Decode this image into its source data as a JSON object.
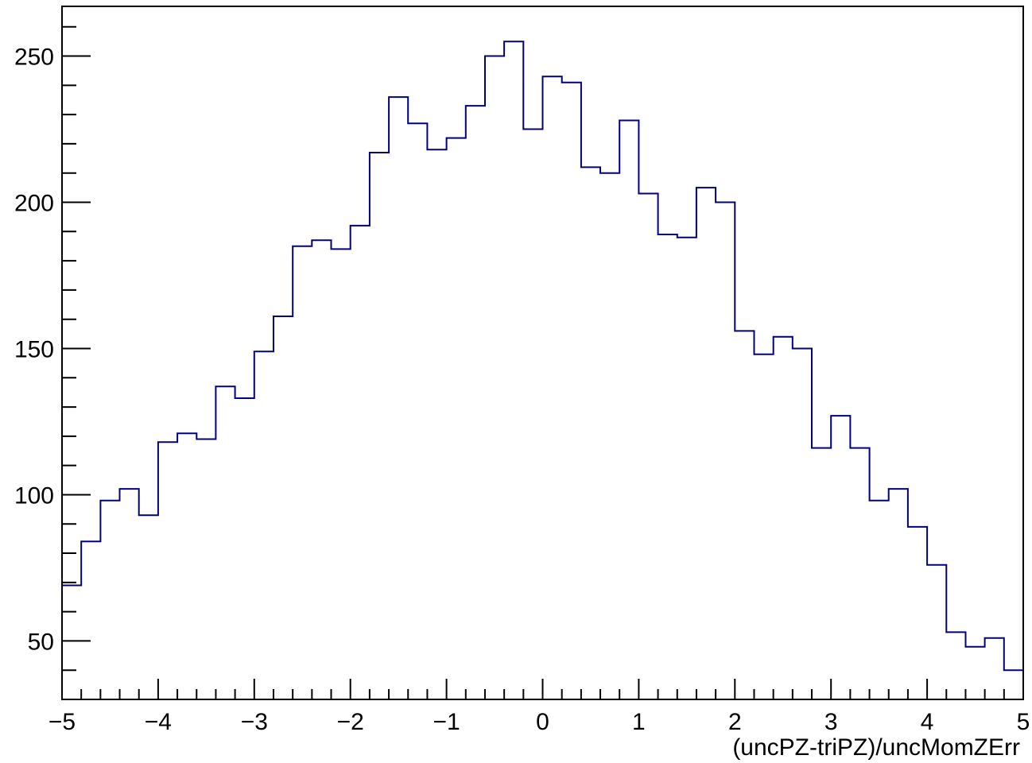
{
  "chart_data": {
    "type": "histogram",
    "title": "",
    "xlabel": "(uncPZ-triPZ)/uncMomZErr",
    "ylabel": "",
    "xlim": [
      -5,
      5
    ],
    "ylim": [
      30,
      267
    ],
    "x_ticks": [
      -5,
      -4,
      -3,
      -2,
      -1,
      0,
      1,
      2,
      3,
      4,
      5
    ],
    "x_tick_labels": [
      "−5",
      "−4",
      "−3",
      "−2",
      "−1",
      "0",
      "1",
      "2",
      "3",
      "4",
      "5"
    ],
    "y_ticks": [
      50,
      100,
      150,
      200,
      250
    ],
    "y_tick_labels": [
      "50",
      "100",
      "150",
      "200",
      "250"
    ],
    "grid": false,
    "line_color": "#000080",
    "bin_width": 0.2,
    "bin_edges_start": -5,
    "values": [
      69,
      84,
      98,
      102,
      93,
      118,
      121,
      119,
      137,
      133,
      149,
      161,
      185,
      187,
      184,
      192,
      217,
      236,
      227,
      218,
      222,
      233,
      250,
      255,
      225,
      243,
      241,
      212,
      210,
      228,
      203,
      189,
      188,
      205,
      200,
      156,
      148,
      154,
      150,
      116,
      127,
      116,
      98,
      102,
      89,
      76,
      53,
      48,
      51,
      40
    ]
  }
}
